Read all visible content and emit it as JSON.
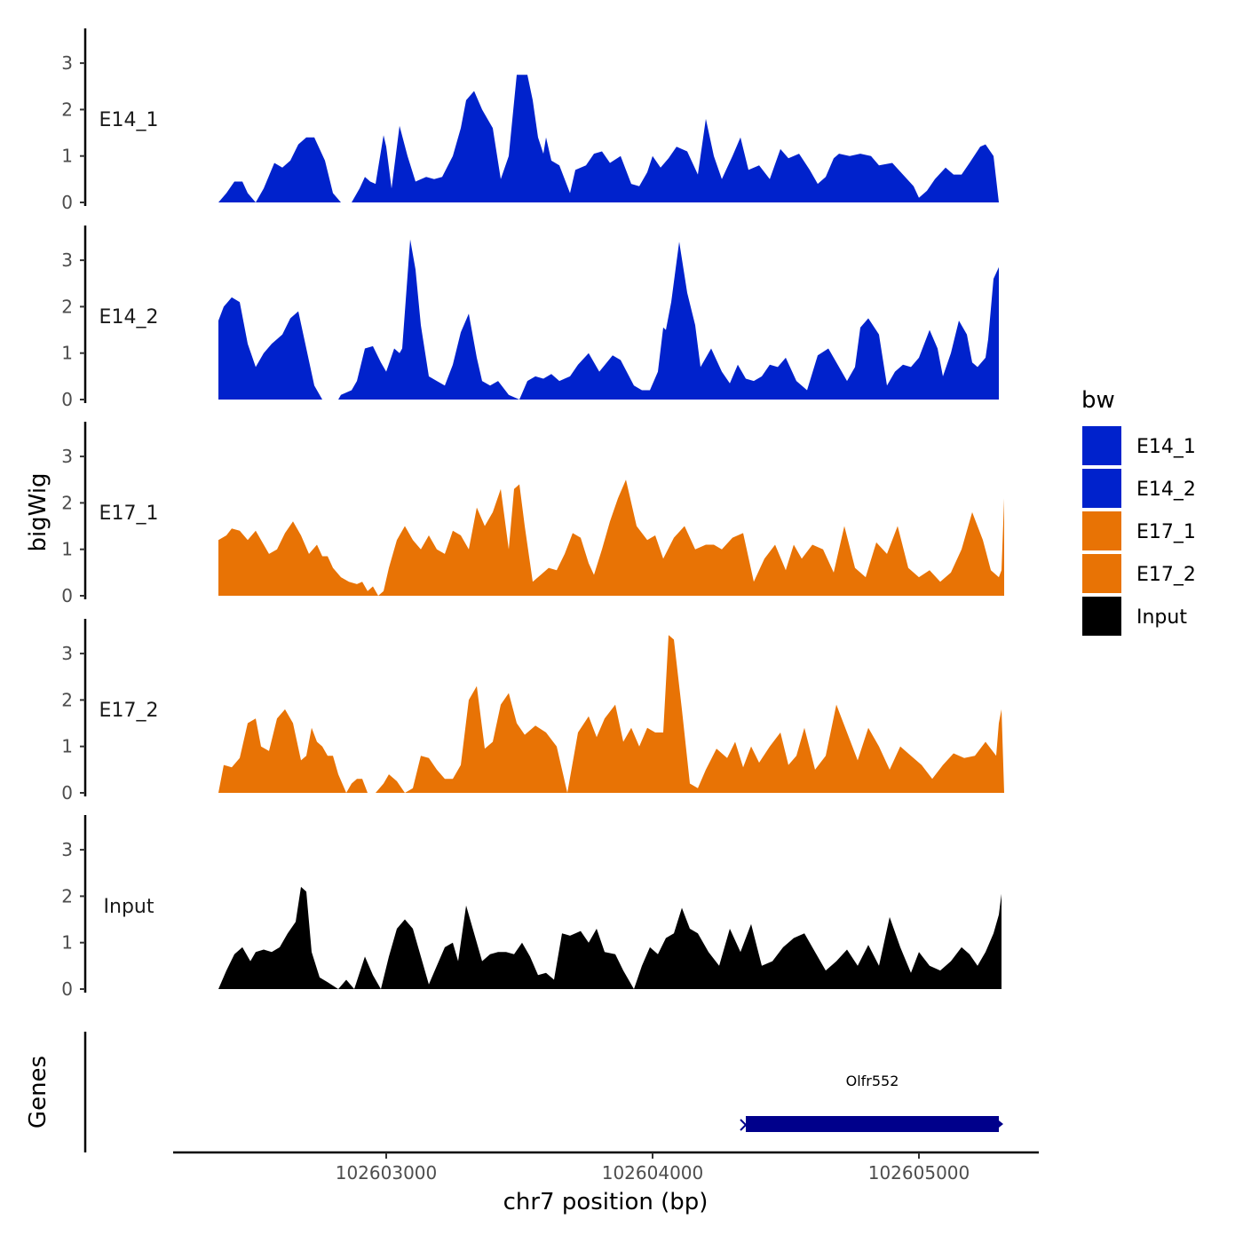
{
  "chart_data": {
    "type": "area",
    "ylabel": "bigWig",
    "xlabel": "chr7 position (bp)",
    "xlim": [
      102602200,
      102605450
    ],
    "ylim": [
      0,
      3.8
    ],
    "y_ticks": [
      "0",
      "1",
      "2",
      "3"
    ],
    "x_ticks": [
      {
        "value": 102603000,
        "label": "102603000"
      },
      {
        "value": 102604000,
        "label": "102604000"
      },
      {
        "value": 102605000,
        "label": "102605000"
      }
    ],
    "legend": {
      "title": "bw",
      "position": "right",
      "items": [
        {
          "label": "E14_1",
          "color": "#0022cc"
        },
        {
          "label": "E14_2",
          "color": "#0022cc"
        },
        {
          "label": "E17_1",
          "color": "#e87305"
        },
        {
          "label": "E17_2",
          "color": "#e87305"
        },
        {
          "label": "Input",
          "color": "#000000"
        }
      ]
    },
    "tracks": [
      {
        "name": "E14_1",
        "color": "#0022cc",
        "x": [
          102602370,
          102602400,
          102602430,
          102602460,
          102602480,
          102602510,
          102602540,
          102602580,
          102602610,
          102602640,
          102602670,
          102602700,
          102602730,
          102602770,
          102602800,
          102602830,
          102602870,
          102602900,
          102602920,
          102602940,
          102602960,
          102602990,
          102603000,
          102603020,
          102603050,
          102603080,
          102603110,
          102603150,
          102603180,
          102603210,
          102603250,
          102603280,
          102603300,
          102603330,
          102603360,
          102603400,
          102603430,
          102603460,
          102603490,
          102603530,
          102603550,
          102603570,
          102603590,
          102603600,
          102603620,
          102603650,
          102603690,
          102603710,
          102603750,
          102603780,
          102603810,
          102603840,
          102603880,
          102603920,
          102603950,
          102603980,
          102604000,
          102604030,
          102604060,
          102604090,
          102604130,
          102604170,
          102604200,
          102604230,
          102604260,
          102604300,
          102604330,
          102604360,
          102604400,
          102604440,
          102604480,
          102604510,
          102604550,
          102604590,
          102604620,
          102604650,
          102604680,
          102604700,
          102604740,
          102604780,
          102604820,
          102604850,
          102604900,
          102604940,
          102604980,
          102605000,
          102605030,
          102605060,
          102605100,
          102605130,
          102605160,
          102605190,
          102605230,
          102605250,
          102605280,
          102605300,
          102605310,
          102605320
        ],
        "y": [
          0.0,
          0.2,
          0.45,
          0.45,
          0.2,
          0.0,
          0.3,
          0.85,
          0.75,
          0.9,
          1.25,
          1.4,
          1.4,
          0.9,
          0.2,
          0.0,
          0.0,
          0.3,
          0.55,
          0.45,
          0.4,
          1.45,
          1.2,
          0.3,
          1.65,
          1.0,
          0.45,
          0.55,
          0.5,
          0.55,
          1.0,
          1.6,
          2.2,
          2.4,
          2.0,
          1.6,
          0.5,
          1.0,
          2.75,
          2.75,
          2.2,
          1.4,
          1.05,
          1.4,
          0.9,
          0.8,
          0.2,
          0.7,
          0.8,
          1.05,
          1.1,
          0.85,
          1.0,
          0.4,
          0.35,
          0.65,
          1.0,
          0.75,
          0.95,
          1.2,
          1.1,
          0.6,
          1.8,
          1.0,
          0.5,
          1.0,
          1.4,
          0.7,
          0.8,
          0.5,
          1.15,
          0.95,
          1.05,
          0.7,
          0.4,
          0.55,
          0.95,
          1.05,
          1.0,
          1.05,
          1.0,
          0.8,
          0.85,
          0.6,
          0.35,
          0.1,
          0.25,
          0.5,
          0.75,
          0.6,
          0.6,
          0.85,
          1.2,
          1.25,
          1.0,
          0.0,
          0.0,
          0.0
        ]
      },
      {
        "name": "E14_2",
        "color": "#0022cc",
        "x": [
          102602370,
          102602390,
          102602420,
          102602450,
          102602480,
          102602510,
          102602540,
          102602570,
          102602610,
          102602640,
          102602670,
          102602700,
          102602730,
          102602760,
          102602790,
          102602820,
          102602830,
          102602870,
          102602890,
          102602920,
          102602950,
          102602980,
          102603000,
          102603030,
          102603050,
          102603060,
          102603090,
          102603110,
          102603130,
          102603160,
          102603190,
          102603220,
          102603250,
          102603280,
          102603310,
          102603340,
          102603360,
          102603390,
          102603420,
          102603460,
          102603500,
          102603530,
          102603560,
          102603590,
          102603620,
          102603650,
          102603690,
          102603720,
          102603760,
          102603800,
          102603850,
          102603880,
          102603930,
          102603960,
          102603990,
          102604020,
          102604040,
          102604050,
          102604070,
          102604100,
          102604130,
          102604160,
          102604180,
          102604220,
          102604260,
          102604290,
          102604320,
          102604350,
          102604380,
          102604410,
          102604440,
          102604470,
          102604500,
          102604540,
          102604580,
          102604620,
          102604660,
          102604700,
          102604730,
          102604760,
          102604780,
          102604810,
          102604850,
          102604880,
          102604910,
          102604940,
          102604970,
          102605000,
          102605040,
          102605070,
          102605090,
          102605120,
          102605150,
          102605180,
          102605200,
          102605220,
          102605250,
          102605260,
          102605280,
          102605300
        ],
        "y": [
          1.7,
          2.0,
          2.2,
          2.1,
          1.2,
          0.7,
          1.0,
          1.2,
          1.4,
          1.75,
          1.9,
          1.1,
          0.3,
          0.0,
          0.0,
          0.0,
          0.1,
          0.2,
          0.4,
          1.1,
          1.15,
          0.8,
          0.6,
          1.1,
          1.0,
          1.1,
          3.45,
          2.8,
          1.6,
          0.5,
          0.4,
          0.3,
          0.75,
          1.45,
          1.85,
          0.9,
          0.4,
          0.3,
          0.4,
          0.1,
          0.0,
          0.4,
          0.5,
          0.45,
          0.55,
          0.4,
          0.5,
          0.75,
          1.0,
          0.6,
          0.95,
          0.85,
          0.3,
          0.2,
          0.2,
          0.6,
          1.55,
          1.5,
          2.1,
          3.4,
          2.3,
          1.6,
          0.7,
          1.1,
          0.6,
          0.35,
          0.75,
          0.45,
          0.4,
          0.5,
          0.75,
          0.7,
          0.9,
          0.4,
          0.2,
          0.95,
          1.1,
          0.7,
          0.4,
          0.7,
          1.55,
          1.75,
          1.4,
          0.3,
          0.6,
          0.75,
          0.7,
          0.9,
          1.5,
          1.1,
          0.5,
          1.0,
          1.7,
          1.4,
          0.8,
          0.7,
          0.9,
          1.3,
          2.6,
          2.85
        ]
      },
      {
        "name": "E17_1",
        "color": "#e87305",
        "x": [
          102602370,
          102602400,
          102602420,
          102602450,
          102602480,
          102602510,
          102602530,
          102602560,
          102602590,
          102602620,
          102602650,
          102602680,
          102602710,
          102602740,
          102602760,
          102602780,
          102602800,
          102602830,
          102602860,
          102602890,
          102602910,
          102602930,
          102602950,
          102602970,
          102602990,
          102603010,
          102603040,
          102603070,
          102603100,
          102603130,
          102603160,
          102603190,
          102603220,
          102603250,
          102603280,
          102603310,
          102603340,
          102603370,
          102603400,
          102603430,
          102603460,
          102603480,
          102603500,
          102603520,
          102603550,
          102603580,
          102603610,
          102603640,
          102603670,
          102603700,
          102603730,
          102603760,
          102603780,
          102603810,
          102603840,
          102603870,
          102603900,
          102603940,
          102603980,
          102604010,
          102604040,
          102604080,
          102604120,
          102604160,
          102604200,
          102604230,
          102604260,
          102604300,
          102604340,
          102604380,
          102604420,
          102604460,
          102604500,
          102604530,
          102604560,
          102604600,
          102604640,
          102604680,
          102604720,
          102604760,
          102604800,
          102604840,
          102604880,
          102604920,
          102604960,
          102605000,
          102605040,
          102605080,
          102605120,
          102605160,
          102605200,
          102605240,
          102605270,
          102605290,
          102605300,
          102605310,
          102605320
        ],
        "y": [
          1.2,
          1.3,
          1.45,
          1.4,
          1.2,
          1.4,
          1.2,
          0.9,
          1.0,
          1.35,
          1.6,
          1.3,
          0.9,
          1.1,
          0.85,
          0.85,
          0.6,
          0.4,
          0.3,
          0.25,
          0.3,
          0.1,
          0.2,
          0.0,
          0.1,
          0.6,
          1.2,
          1.5,
          1.2,
          1.0,
          1.3,
          1.0,
          0.9,
          1.4,
          1.3,
          1.0,
          1.9,
          1.5,
          1.8,
          2.3,
          1.0,
          2.3,
          2.4,
          1.5,
          0.3,
          0.45,
          0.6,
          0.55,
          0.9,
          1.35,
          1.25,
          0.7,
          0.45,
          1.0,
          1.6,
          2.1,
          2.5,
          1.5,
          1.2,
          1.3,
          0.8,
          1.25,
          1.5,
          1.0,
          1.1,
          1.1,
          1.0,
          1.25,
          1.35,
          0.3,
          0.8,
          1.1,
          0.55,
          1.1,
          0.8,
          1.1,
          1.0,
          0.5,
          1.5,
          0.6,
          0.4,
          1.15,
          0.9,
          1.5,
          0.6,
          0.4,
          0.55,
          0.3,
          0.5,
          1.0,
          1.8,
          1.2,
          0.55,
          0.45,
          0.4,
          0.55,
          2.1
        ]
      },
      {
        "name": "E17_2",
        "color": "#e87305",
        "x": [
          102602370,
          102602390,
          102602420,
          102602450,
          102602480,
          102602510,
          102602530,
          102602560,
          102602590,
          102602620,
          102602650,
          102602680,
          102602700,
          102602720,
          102602740,
          102602760,
          102602780,
          102602800,
          102602820,
          102602850,
          102602870,
          102602890,
          102602910,
          102602930,
          102602960,
          102602990,
          102603010,
          102603040,
          102603070,
          102603100,
          102603130,
          102603160,
          102603190,
          102603220,
          102603250,
          102603280,
          102603310,
          102603340,
          102603370,
          102603400,
          102603430,
          102603460,
          102603490,
          102603520,
          102603560,
          102603600,
          102603640,
          102603680,
          102603720,
          102603760,
          102603790,
          102603820,
          102603860,
          102603890,
          102603920,
          102603950,
          102603980,
          102604010,
          102604040,
          102604060,
          102604080,
          102604110,
          102604140,
          102604170,
          102604200,
          102604240,
          102604280,
          102604310,
          102604340,
          102604370,
          102604400,
          102604440,
          102604480,
          102604510,
          102604540,
          102604570,
          102604610,
          102604650,
          102604690,
          102604730,
          102604770,
          102604810,
          102604850,
          102604890,
          102604930,
          102604970,
          102605010,
          102605050,
          102605090,
          102605130,
          102605170,
          102605210,
          102605250,
          102605290,
          102605300,
          102605310,
          102605320
        ],
        "y": [
          0.0,
          0.6,
          0.55,
          0.75,
          1.5,
          1.6,
          1.0,
          0.9,
          1.6,
          1.8,
          1.5,
          0.7,
          0.8,
          1.4,
          1.1,
          1.0,
          0.8,
          0.8,
          0.4,
          0.0,
          0.2,
          0.3,
          0.3,
          0.0,
          0.0,
          0.2,
          0.4,
          0.25,
          0.0,
          0.1,
          0.8,
          0.75,
          0.5,
          0.3,
          0.3,
          0.6,
          2.0,
          2.3,
          0.95,
          1.1,
          1.9,
          2.15,
          1.5,
          1.25,
          1.45,
          1.3,
          1.0,
          0.0,
          1.3,
          1.65,
          1.2,
          1.6,
          1.9,
          1.1,
          1.4,
          1.0,
          1.4,
          1.3,
          1.3,
          3.4,
          3.3,
          1.8,
          0.2,
          0.1,
          0.5,
          0.95,
          0.75,
          1.1,
          0.55,
          1.0,
          0.65,
          1.0,
          1.3,
          0.6,
          0.8,
          1.4,
          0.5,
          0.8,
          1.9,
          1.3,
          0.7,
          1.4,
          1.0,
          0.5,
          1.0,
          0.8,
          0.6,
          0.3,
          0.6,
          0.85,
          0.75,
          0.8,
          1.1,
          0.8,
          1.5,
          1.8,
          0.0
        ]
      },
      {
        "name": "Input",
        "color": "#000000",
        "x": [
          102602370,
          102602400,
          102602430,
          102602460,
          102602490,
          102602510,
          102602540,
          102602570,
          102602600,
          102602630,
          102602660,
          102602680,
          102602700,
          102602720,
          102602750,
          102602780,
          102602820,
          102602850,
          102602880,
          102602920,
          102602950,
          102602980,
          102603010,
          102603040,
          102603070,
          102603100,
          102603130,
          102603160,
          102603190,
          102603220,
          102603250,
          102603270,
          102603300,
          102603330,
          102603360,
          102603390,
          102603420,
          102603450,
          102603480,
          102603510,
          102603540,
          102603570,
          102603600,
          102603630,
          102603660,
          102603690,
          102603730,
          102603760,
          102603790,
          102603820,
          102603860,
          102603890,
          102603930,
          102603960,
          102603990,
          102604020,
          102604050,
          102604080,
          102604110,
          102604140,
          102604170,
          102604210,
          102604250,
          102604290,
          102604330,
          102604370,
          102604410,
          102604450,
          102604490,
          102604530,
          102604570,
          102604610,
          102604650,
          102604690,
          102604730,
          102604770,
          102604810,
          102604850,
          102604890,
          102604930,
          102604970,
          102605000,
          102605040,
          102605080,
          102605120,
          102605160,
          102605190,
          102605220,
          102605250,
          102605280,
          102605300,
          102605310
        ],
        "y": [
          0.0,
          0.4,
          0.75,
          0.9,
          0.6,
          0.8,
          0.85,
          0.8,
          0.9,
          1.2,
          1.45,
          2.2,
          2.1,
          0.8,
          0.25,
          0.15,
          0.0,
          0.2,
          0.0,
          0.7,
          0.3,
          0.0,
          0.7,
          1.3,
          1.5,
          1.3,
          0.7,
          0.1,
          0.5,
          0.9,
          1.0,
          0.6,
          1.8,
          1.2,
          0.6,
          0.75,
          0.8,
          0.8,
          0.75,
          1.0,
          0.7,
          0.3,
          0.35,
          0.2,
          1.2,
          1.15,
          1.25,
          1.0,
          1.3,
          0.8,
          0.75,
          0.4,
          0.0,
          0.5,
          0.9,
          0.75,
          1.1,
          1.2,
          1.75,
          1.3,
          1.2,
          0.8,
          0.5,
          1.3,
          0.8,
          1.4,
          0.5,
          0.6,
          0.9,
          1.1,
          1.2,
          0.8,
          0.4,
          0.6,
          0.85,
          0.5,
          0.95,
          0.5,
          1.55,
          0.9,
          0.35,
          0.8,
          0.5,
          0.4,
          0.6,
          0.9,
          0.75,
          0.5,
          0.8,
          1.2,
          1.6,
          2.05
        ]
      }
    ],
    "genes_track": {
      "label": "Genes",
      "genes": [
        {
          "name": "Olfr552",
          "start": 102604350,
          "end": 102605300,
          "color": "#00008b"
        }
      ]
    }
  }
}
